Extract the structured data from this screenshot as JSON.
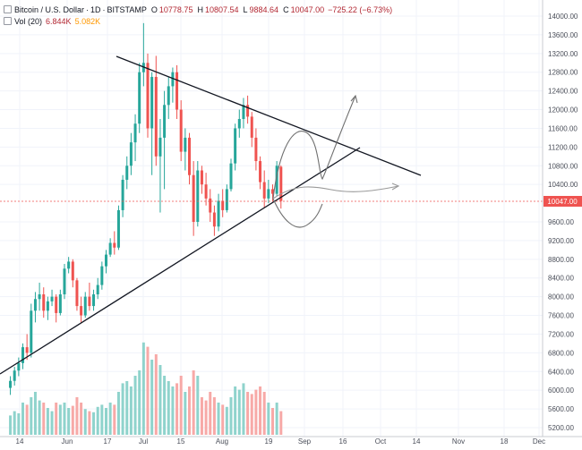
{
  "legend": {
    "symbol": "Bitcoin / U.S. Dollar",
    "interval": "1D",
    "exchange": "BITSTAMP",
    "open_label": "O",
    "open": "10778.75",
    "high_label": "H",
    "high": "10807.54",
    "low_label": "L",
    "low": "9884.64",
    "close_label": "C",
    "close": "10047.00",
    "change": "−725.22 (−6.73%)",
    "volume_label": "Vol (20)",
    "volume_value": "6.844K",
    "volume_ma": "5.082K"
  },
  "price_axis": {
    "labels": [
      "14000.00",
      "13600.00",
      "13200.00",
      "12800.00",
      "12400.00",
      "12000.00",
      "11600.00",
      "11200.00",
      "10800.00",
      "10400.00",
      "9600.00",
      "9200.00",
      "8800.00",
      "8400.00",
      "8000.00",
      "7600.00",
      "7200.00",
      "6800.00",
      "6400.00",
      "6000.00",
      "5600.00",
      "5200.00"
    ],
    "current_price": "10047.00"
  },
  "time_axis": {
    "labels": [
      "14",
      "Jun",
      "17",
      "Jul",
      "15",
      "Aug",
      "19",
      "Sep",
      "16",
      "Oct",
      "14",
      "Nov",
      "18",
      "Dec"
    ]
  },
  "colors": {
    "up": "#26a69a",
    "down": "#ef5350",
    "vol_up": "#8fd3cc",
    "vol_down": "#f7a9a7",
    "trend_line": "#131722",
    "projection": "#808080",
    "price_tag": "#ef5350",
    "grid": "#f0f3fa"
  },
  "chart_data": {
    "type": "candlestick",
    "y_scale": [
      5000,
      14200
    ],
    "current_price": 10047.0,
    "candles": [
      {
        "x": 1,
        "o": 6050,
        "h": 6300,
        "l": 5900,
        "c": 6200,
        "v": 0.18
      },
      {
        "x": 4,
        "o": 6200,
        "h": 6500,
        "l": 6100,
        "c": 6420,
        "v": 0.22
      },
      {
        "x": 7,
        "o": 6420,
        "h": 6700,
        "l": 6300,
        "c": 6580,
        "v": 0.2
      },
      {
        "x": 10,
        "o": 6580,
        "h": 7000,
        "l": 6450,
        "c": 6920,
        "v": 0.3
      },
      {
        "x": 13,
        "o": 6920,
        "h": 7200,
        "l": 6650,
        "c": 6800,
        "v": 0.28
      },
      {
        "x": 16,
        "o": 6800,
        "h": 7850,
        "l": 6700,
        "c": 7700,
        "v": 0.35
      },
      {
        "x": 19,
        "o": 7700,
        "h": 8100,
        "l": 7450,
        "c": 7950,
        "v": 0.4
      },
      {
        "x": 22,
        "o": 7950,
        "h": 8300,
        "l": 7700,
        "c": 8050,
        "v": 0.32
      },
      {
        "x": 25,
        "o": 8050,
        "h": 8200,
        "l": 7550,
        "c": 7700,
        "v": 0.3
      },
      {
        "x": 28,
        "o": 7700,
        "h": 8000,
        "l": 7500,
        "c": 7900,
        "v": 0.25
      },
      {
        "x": 31,
        "o": 7900,
        "h": 8150,
        "l": 7800,
        "c": 8000,
        "v": 0.22
      },
      {
        "x": 34,
        "o": 8000,
        "h": 8050,
        "l": 7450,
        "c": 7650,
        "v": 0.3
      },
      {
        "x": 37,
        "o": 7650,
        "h": 8150,
        "l": 7600,
        "c": 8050,
        "v": 0.28
      },
      {
        "x": 40,
        "o": 8050,
        "h": 8700,
        "l": 7950,
        "c": 8600,
        "v": 0.3
      },
      {
        "x": 43,
        "o": 8600,
        "h": 8850,
        "l": 8500,
        "c": 8750,
        "v": 0.25
      },
      {
        "x": 46,
        "o": 8750,
        "h": 8800,
        "l": 8200,
        "c": 8350,
        "v": 0.27
      },
      {
        "x": 49,
        "o": 8350,
        "h": 8400,
        "l": 7700,
        "c": 7800,
        "v": 0.35
      },
      {
        "x": 52,
        "o": 7800,
        "h": 8000,
        "l": 7450,
        "c": 7600,
        "v": 0.3
      },
      {
        "x": 55,
        "o": 7600,
        "h": 8100,
        "l": 7550,
        "c": 8000,
        "v": 0.24
      },
      {
        "x": 58,
        "o": 8000,
        "h": 8300,
        "l": 7700,
        "c": 7800,
        "v": 0.22
      },
      {
        "x": 61,
        "o": 7800,
        "h": 8150,
        "l": 7700,
        "c": 8050,
        "v": 0.21
      },
      {
        "x": 64,
        "o": 8050,
        "h": 8400,
        "l": 7950,
        "c": 8250,
        "v": 0.26
      },
      {
        "x": 67,
        "o": 8250,
        "h": 8750,
        "l": 8150,
        "c": 8650,
        "v": 0.28
      },
      {
        "x": 70,
        "o": 8650,
        "h": 9000,
        "l": 8500,
        "c": 8900,
        "v": 0.25
      },
      {
        "x": 73,
        "o": 8900,
        "h": 9250,
        "l": 8850,
        "c": 9150,
        "v": 0.3
      },
      {
        "x": 76,
        "o": 9150,
        "h": 9400,
        "l": 8900,
        "c": 9050,
        "v": 0.28
      },
      {
        "x": 79,
        "o": 9050,
        "h": 9950,
        "l": 9000,
        "c": 9850,
        "v": 0.4
      },
      {
        "x": 82,
        "o": 9850,
        "h": 10600,
        "l": 9700,
        "c": 10500,
        "v": 0.48
      },
      {
        "x": 85,
        "o": 10500,
        "h": 11000,
        "l": 10300,
        "c": 10800,
        "v": 0.5
      },
      {
        "x": 88,
        "o": 10800,
        "h": 11500,
        "l": 10600,
        "c": 11300,
        "v": 0.45
      },
      {
        "x": 91,
        "o": 11300,
        "h": 11900,
        "l": 10900,
        "c": 11700,
        "v": 0.55
      },
      {
        "x": 94,
        "o": 11700,
        "h": 13000,
        "l": 11500,
        "c": 12800,
        "v": 0.6
      },
      {
        "x": 97,
        "o": 12800,
        "h": 13850,
        "l": 12500,
        "c": 13000,
        "v": 0.86
      },
      {
        "x": 100,
        "o": 13000,
        "h": 13200,
        "l": 11400,
        "c": 11600,
        "v": 0.82
      },
      {
        "x": 103,
        "o": 11600,
        "h": 12800,
        "l": 10600,
        "c": 12700,
        "v": 0.7
      },
      {
        "x": 106,
        "o": 12700,
        "h": 13150,
        "l": 10800,
        "c": 11000,
        "v": 0.75
      },
      {
        "x": 109,
        "o": 11000,
        "h": 11800,
        "l": 9800,
        "c": 11400,
        "v": 0.65
      },
      {
        "x": 112,
        "o": 11400,
        "h": 12400,
        "l": 10300,
        "c": 12100,
        "v": 0.55
      },
      {
        "x": 115,
        "o": 12100,
        "h": 12700,
        "l": 11800,
        "c": 12500,
        "v": 0.5
      },
      {
        "x": 118,
        "o": 12500,
        "h": 12900,
        "l": 12150,
        "c": 12800,
        "v": 0.45
      },
      {
        "x": 121,
        "o": 12800,
        "h": 12950,
        "l": 11800,
        "c": 12000,
        "v": 0.48
      },
      {
        "x": 124,
        "o": 12000,
        "h": 12200,
        "l": 10900,
        "c": 11100,
        "v": 0.55
      },
      {
        "x": 127,
        "o": 11100,
        "h": 11600,
        "l": 10700,
        "c": 11400,
        "v": 0.4
      },
      {
        "x": 130,
        "o": 11400,
        "h": 11500,
        "l": 10400,
        "c": 10600,
        "v": 0.45
      },
      {
        "x": 133,
        "o": 10600,
        "h": 10900,
        "l": 9300,
        "c": 9600,
        "v": 0.6
      },
      {
        "x": 136,
        "o": 9600,
        "h": 10900,
        "l": 9500,
        "c": 10700,
        "v": 0.55
      },
      {
        "x": 139,
        "o": 10700,
        "h": 10800,
        "l": 10200,
        "c": 10400,
        "v": 0.35
      },
      {
        "x": 142,
        "o": 10400,
        "h": 10650,
        "l": 9950,
        "c": 10100,
        "v": 0.32
      },
      {
        "x": 145,
        "o": 10100,
        "h": 10300,
        "l": 9600,
        "c": 9800,
        "v": 0.4
      },
      {
        "x": 148,
        "o": 9800,
        "h": 9950,
        "l": 9300,
        "c": 9500,
        "v": 0.35
      },
      {
        "x": 151,
        "o": 9500,
        "h": 10200,
        "l": 9400,
        "c": 10050,
        "v": 0.3
      },
      {
        "x": 154,
        "o": 10050,
        "h": 10300,
        "l": 9700,
        "c": 9850,
        "v": 0.28
      },
      {
        "x": 157,
        "o": 9850,
        "h": 10400,
        "l": 9800,
        "c": 10300,
        "v": 0.26
      },
      {
        "x": 160,
        "o": 10300,
        "h": 10950,
        "l": 10250,
        "c": 10850,
        "v": 0.35
      },
      {
        "x": 163,
        "o": 10850,
        "h": 11700,
        "l": 10700,
        "c": 11600,
        "v": 0.45
      },
      {
        "x": 166,
        "o": 11600,
        "h": 12000,
        "l": 11400,
        "c": 11800,
        "v": 0.42
      },
      {
        "x": 169,
        "o": 11800,
        "h": 12250,
        "l": 11600,
        "c": 12100,
        "v": 0.48
      },
      {
        "x": 172,
        "o": 12100,
        "h": 12300,
        "l": 11700,
        "c": 11850,
        "v": 0.4
      },
      {
        "x": 175,
        "o": 11850,
        "h": 11950,
        "l": 11200,
        "c": 11400,
        "v": 0.38
      },
      {
        "x": 178,
        "o": 11400,
        "h": 11600,
        "l": 10700,
        "c": 10900,
        "v": 0.42
      },
      {
        "x": 181,
        "o": 10900,
        "h": 11000,
        "l": 10300,
        "c": 10450,
        "v": 0.45
      },
      {
        "x": 184,
        "o": 10450,
        "h": 10700,
        "l": 9900,
        "c": 10100,
        "v": 0.4
      },
      {
        "x": 187,
        "o": 10100,
        "h": 10500,
        "l": 10000,
        "c": 10300,
        "v": 0.3
      },
      {
        "x": 190,
        "o": 10300,
        "h": 10400,
        "l": 10050,
        "c": 10200,
        "v": 0.25
      },
      {
        "x": 193,
        "o": 10200,
        "h": 10900,
        "l": 10150,
        "c": 10800,
        "v": 0.3
      },
      {
        "x": 196,
        "o": 10778,
        "h": 10807,
        "l": 9884,
        "c": 10047,
        "v": 0.22
      }
    ]
  }
}
